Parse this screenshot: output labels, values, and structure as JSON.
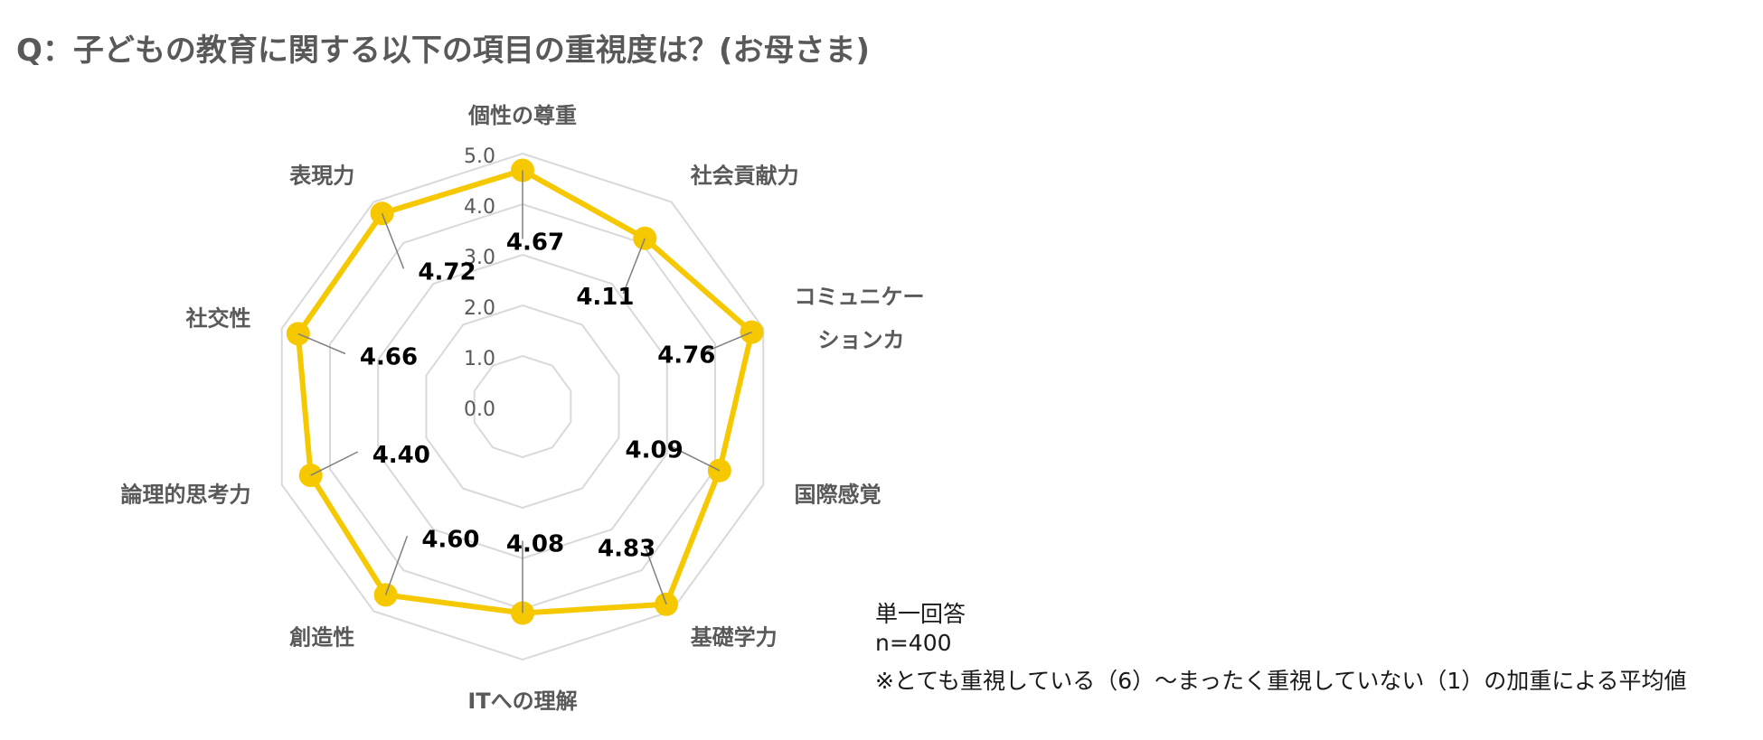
{
  "title": "Q：子どもの教育に関する以下の項目の重視度は？(お母さま)",
  "notes": {
    "line1": "単一回答",
    "line2": "n=400",
    "line3": "※とても重視している（6）～まったく重視していない（1）の加重による平均値"
  },
  "colors": {
    "series": "#F5C800",
    "grid": "#D9D9D9",
    "axis_text": "#595959",
    "label_text": "#000000",
    "leader": "#808080"
  },
  "chart_data": {
    "type": "radar",
    "title": "Q：子どもの教育に関する以下の項目の重視度は？(お母さま)",
    "categories": [
      [
        "個性の尊重"
      ],
      [
        "社会貢献力"
      ],
      [
        "コミュニケー",
        "ションカ"
      ],
      [
        "国際感覚"
      ],
      [
        "基礎学力"
      ],
      [
        "ITへの理解"
      ],
      [
        "創造性"
      ],
      [
        "論理的思考力"
      ],
      [
        "社交性"
      ],
      [
        "表現力"
      ]
    ],
    "values": [
      4.67,
      4.11,
      4.76,
      4.09,
      4.83,
      4.08,
      4.6,
      4.4,
      4.66,
      4.72
    ],
    "value_labels": [
      "4.67",
      "4.11",
      "4.76",
      "4.09",
      "4.83",
      "4.08",
      "4.60",
      "4.40",
      "4.66",
      "4.72"
    ],
    "rlim": [
      0,
      5
    ],
    "ticks": [
      0,
      1,
      2,
      3,
      4,
      5
    ],
    "tick_labels": [
      "0.0",
      "1.0",
      "2.0",
      "3.0",
      "4.0",
      "5.0"
    ],
    "grid": true,
    "legend": "none"
  }
}
